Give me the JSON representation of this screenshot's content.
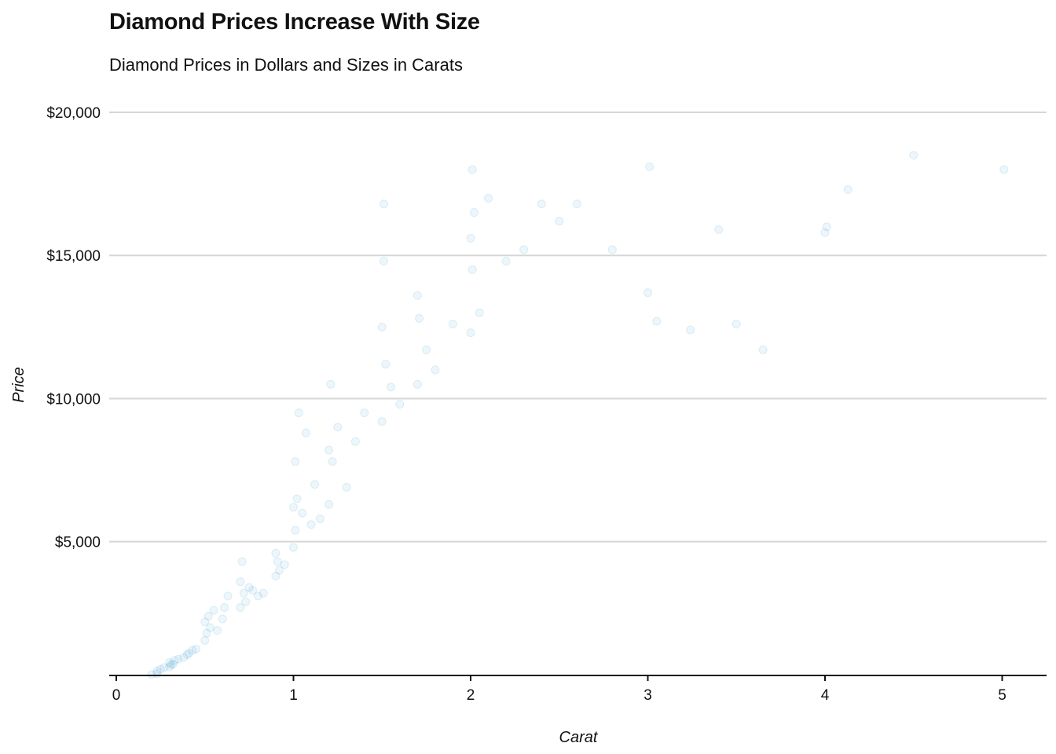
{
  "chart_data": {
    "type": "scatter",
    "title": "Diamond Prices Increase With Size",
    "subtitle": "Diamond Prices in Dollars and Sizes in Carats",
    "xlabel": "Carat",
    "ylabel": "Price",
    "xlim": [
      0,
      5.25
    ],
    "ylim": [
      326,
      20000
    ],
    "x_ticks": [
      0,
      1,
      2,
      3,
      4,
      5
    ],
    "x_tick_labels": [
      "0",
      "1",
      "2",
      "3",
      "4",
      "5"
    ],
    "y_ticks": [
      5000,
      10000,
      15000,
      20000
    ],
    "y_tick_labels": [
      "$5,000",
      "$10,000",
      "$15,000",
      "$20,000"
    ],
    "grid": "horizontal",
    "point_color": "#1a8cc8",
    "point_opacity": 0.08,
    "series": [
      {
        "x": [
          0.2,
          0.23,
          0.23,
          0.25,
          0.27,
          0.3,
          0.3,
          0.31,
          0.32,
          0.33,
          0.35,
          0.38,
          0.4,
          0.41,
          0.43,
          0.45,
          0.5,
          0.5,
          0.51,
          0.52,
          0.53,
          0.55,
          0.57,
          0.6,
          0.61,
          0.63,
          0.7,
          0.7,
          0.71,
          0.72,
          0.73,
          0.75,
          0.77,
          0.8,
          0.83,
          0.9,
          0.9,
          0.91,
          0.92,
          0.95,
          1.0,
          1.0,
          1.01,
          1.01,
          1.02,
          1.03,
          1.05,
          1.07,
          1.1,
          1.12,
          1.15,
          1.2,
          1.2,
          1.21,
          1.22,
          1.25,
          1.3,
          1.35,
          1.4,
          1.5,
          1.5,
          1.51,
          1.51,
          1.52,
          1.55,
          1.6,
          1.7,
          1.7,
          1.71,
          1.75,
          1.8,
          1.9,
          2.0,
          2.0,
          2.01,
          2.01,
          2.02,
          2.05,
          2.1,
          2.2,
          2.3,
          2.4,
          2.5,
          2.6,
          2.8,
          3.0,
          3.01,
          3.05,
          3.24,
          3.4,
          3.5,
          3.65,
          4.0,
          4.01,
          4.13,
          4.5,
          5.01
        ],
        "y": [
          360,
          390,
          480,
          540,
          600,
          620,
          780,
          700,
          720,
          850,
          900,
          950,
          1050,
          1100,
          1200,
          1250,
          1550,
          2200,
          1800,
          2400,
          2000,
          2600,
          1900,
          2300,
          2700,
          3100,
          2700,
          3600,
          4300,
          3200,
          2900,
          3400,
          3300,
          3100,
          3200,
          3800,
          4600,
          4300,
          4000,
          4200,
          4800,
          6200,
          5400,
          7800,
          6500,
          9500,
          6000,
          8800,
          5600,
          7000,
          5800,
          6300,
          8200,
          10500,
          7800,
          9000,
          6900,
          8500,
          9500,
          9200,
          12500,
          14800,
          16800,
          11200,
          10400,
          9800,
          10500,
          13600,
          12800,
          11700,
          11000,
          12600,
          12300,
          15600,
          18000,
          14500,
          16500,
          13000,
          17000,
          14800,
          15200,
          16800,
          16200,
          16800,
          15200,
          13700,
          18100,
          12700,
          12400,
          15900,
          12600,
          11700,
          15800,
          16000,
          17300,
          18500,
          18000
        ]
      }
    ]
  }
}
